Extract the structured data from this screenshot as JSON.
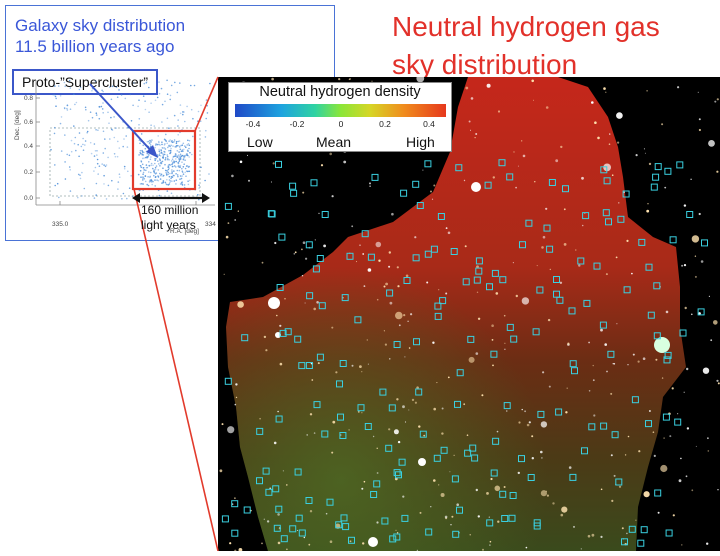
{
  "inset": {
    "title_line1": "Galaxy sky distribution",
    "title_line2": "11.5 billion years ago",
    "proto_label": "Proto-”Supercluster”",
    "y_axis_label": "Dec. [deg]",
    "x_axis_label": "R.A. [deg]",
    "y_ticks": [
      "0.8",
      "0.6",
      "0.4",
      "0.2",
      "0.0"
    ],
    "x_ticks": [
      "335.0",
      "334"
    ],
    "scale_line1": "160 million",
    "scale_line2": "light years"
  },
  "main": {
    "title_line1": "Neutral hydrogen gas",
    "title_line2": "sky distribution"
  },
  "colorbar": {
    "title": "Neutral hydrogen density",
    "ticks": [
      "-0.4",
      "-0.2",
      "0",
      "0.2",
      "0.4"
    ],
    "low_label": "Low",
    "mean_label": "Mean",
    "high_label": "High"
  },
  "colors": {
    "inset_border": "#4a73d6",
    "inset_text": "#3a57d8",
    "title_red": "#e2312a",
    "highlight_red": "#e23b2c",
    "galaxy_marker": "#3ad0e0"
  }
}
